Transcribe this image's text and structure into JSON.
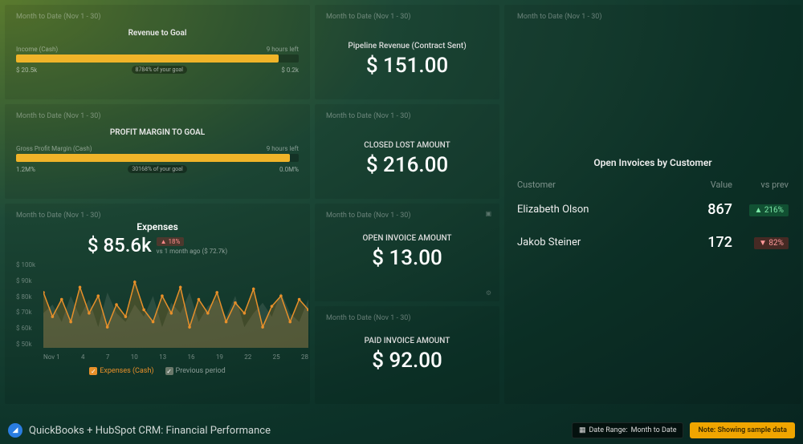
{
  "period_label": "Month to Date (Nov 1 - 30)",
  "revenue_goal": {
    "title": "Revenue to Goal",
    "metric_label": "Income (Cash)",
    "time_left": "9 hours left",
    "current": "$ 20.5k",
    "target": "$ 0.2k",
    "badge": "8784% of your goal",
    "fill_pct": 93,
    "bar_color": "#f0b429"
  },
  "profit_goal": {
    "title": "PROFIT MARGIN TO GOAL",
    "metric_label": "Gross Profit Margin (Cash)",
    "time_left": "9 hours left",
    "current": "1.2M%",
    "target": "0.0M%",
    "badge": "30168% of your goal",
    "fill_pct": 97,
    "bar_color": "#f0b429"
  },
  "pipeline": {
    "title": "Pipeline Revenue (Contract Sent)",
    "value": "$ 151.00"
  },
  "closed_lost": {
    "title": "CLOSED LOST AMOUNT",
    "value": "$ 216.00"
  },
  "open_invoice": {
    "title": "OPEN INVOICE AMOUNT",
    "value": "$ 13.00"
  },
  "paid_invoice": {
    "title": "PAID INVOICE AMOUNT",
    "value": "$ 92.00"
  },
  "expenses": {
    "title": "Expenses",
    "value": "$ 85.6k",
    "delta_pct": "18%",
    "delta_dir": "up",
    "delta_sub": "vs 1 month ago ($ 72.7k)",
    "y_labels": [
      "$ 100k",
      "$ 90k",
      "$ 80k",
      "$ 70k",
      "$ 60k",
      "$ 50k"
    ],
    "x_labels": [
      "Nov 1",
      "4",
      "7",
      "10",
      "13",
      "16",
      "19",
      "22",
      "25",
      "28"
    ],
    "series_current": [
      82,
      68,
      78,
      65,
      85,
      70,
      80,
      62,
      75,
      68,
      88,
      72,
      65,
      80,
      70,
      85,
      62,
      78,
      70,
      82,
      65,
      76,
      70,
      84,
      62,
      74,
      80,
      65,
      78,
      72
    ],
    "series_prev": [
      70,
      75,
      65,
      80,
      68,
      78,
      62,
      82,
      70,
      65,
      75,
      68,
      80,
      62,
      76,
      70,
      82,
      65,
      74,
      78,
      68,
      80,
      62,
      70,
      76,
      68,
      82,
      70,
      65,
      78
    ],
    "y_min": 50,
    "y_max": 100,
    "line_color": "#e8902a",
    "prev_color": "#9aa89a",
    "legend": {
      "current": "Expenses (Cash)",
      "prev": "Previous period"
    }
  },
  "open_invoices_table": {
    "title": "Open Invoices by Customer",
    "columns": [
      "Customer",
      "Value",
      "vs prev"
    ],
    "rows": [
      {
        "name": "Elizabeth Olson",
        "value": "867",
        "delta": "216%",
        "dir": "up"
      },
      {
        "name": "Jakob Steiner",
        "value": "172",
        "delta": "82%",
        "dir": "down"
      }
    ]
  },
  "footer": {
    "title": "QuickBooks + HubSpot CRM: Financial Performance",
    "date_range_label": "Date Range:",
    "date_range_value": "Month to Date",
    "note": "Note: Showing sample data"
  }
}
